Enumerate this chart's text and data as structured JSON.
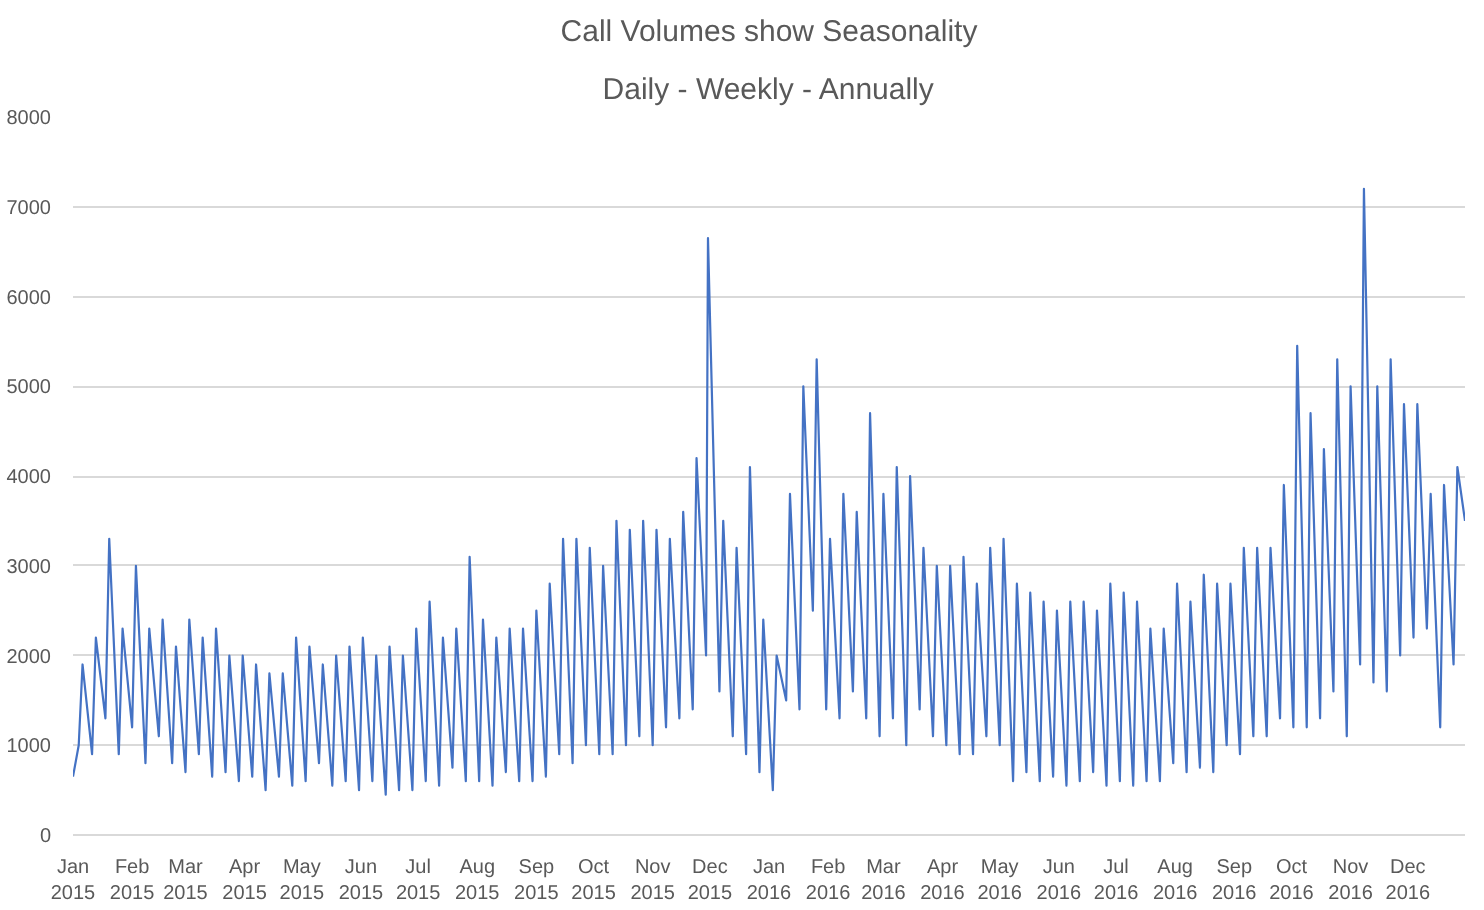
{
  "chart_data": {
    "type": "line",
    "title": "Call Volumes show Seasonality",
    "subtitle": "Daily - Weekly - Annually",
    "color": "#4472c4",
    "grid": "y",
    "ylim": [
      0,
      8000
    ],
    "yticks": [
      0,
      1000,
      2000,
      3000,
      4000,
      5000,
      6000,
      7000,
      8000
    ],
    "xlim": [
      "2015-01-01",
      "2016-12-31"
    ],
    "xticks": [
      {
        "value": "2015-01-01",
        "label": "Jan\n2015"
      },
      {
        "value": "2015-02-01",
        "label": "Feb\n2015"
      },
      {
        "value": "2015-03-01",
        "label": "Mar\n2015"
      },
      {
        "value": "2015-04-01",
        "label": "Apr\n2015"
      },
      {
        "value": "2015-05-01",
        "label": "May\n2015"
      },
      {
        "value": "2015-06-01",
        "label": "Jun\n2015"
      },
      {
        "value": "2015-07-01",
        "label": "Jul\n2015"
      },
      {
        "value": "2015-08-01",
        "label": "Aug\n2015"
      },
      {
        "value": "2015-09-01",
        "label": "Sep\n2015"
      },
      {
        "value": "2015-10-01",
        "label": "Oct\n2015"
      },
      {
        "value": "2015-11-01",
        "label": "Nov\n2015"
      },
      {
        "value": "2015-12-01",
        "label": "Dec\n2015"
      },
      {
        "value": "2016-01-01",
        "label": "Jan\n2016"
      },
      {
        "value": "2016-02-01",
        "label": "Feb\n2016"
      },
      {
        "value": "2016-03-01",
        "label": "Mar\n2016"
      },
      {
        "value": "2016-04-01",
        "label": "Apr\n2016"
      },
      {
        "value": "2016-05-01",
        "label": "May\n2016"
      },
      {
        "value": "2016-06-01",
        "label": "Jun\n2016"
      },
      {
        "value": "2016-07-01",
        "label": "Jul\n2016"
      },
      {
        "value": "2016-08-01",
        "label": "Aug\n2016"
      },
      {
        "value": "2016-09-01",
        "label": "Sep\n2016"
      },
      {
        "value": "2016-10-01",
        "label": "Oct\n2016"
      },
      {
        "value": "2016-11-01",
        "label": "Nov\n2016"
      },
      {
        "value": "2016-12-01",
        "label": "Dec\n2016"
      }
    ],
    "x": [
      "2015-01-01",
      "2015-01-04",
      "2015-01-06",
      "2015-01-11",
      "2015-01-13",
      "2015-01-18",
      "2015-01-20",
      "2015-01-25",
      "2015-01-27",
      "2015-02-01",
      "2015-02-03",
      "2015-02-08",
      "2015-02-10",
      "2015-02-15",
      "2015-02-17",
      "2015-02-22",
      "2015-02-24",
      "2015-03-01",
      "2015-03-03",
      "2015-03-08",
      "2015-03-10",
      "2015-03-15",
      "2015-03-17",
      "2015-03-22",
      "2015-03-24",
      "2015-03-29",
      "2015-03-31",
      "2015-04-05",
      "2015-04-07",
      "2015-04-12",
      "2015-04-14",
      "2015-04-19",
      "2015-04-21",
      "2015-04-26",
      "2015-04-28",
      "2015-05-03",
      "2015-05-05",
      "2015-05-10",
      "2015-05-12",
      "2015-05-17",
      "2015-05-19",
      "2015-05-24",
      "2015-05-26",
      "2015-05-31",
      "2015-06-02",
      "2015-06-07",
      "2015-06-09",
      "2015-06-14",
      "2015-06-16",
      "2015-06-21",
      "2015-06-23",
      "2015-06-28",
      "2015-06-30",
      "2015-07-05",
      "2015-07-07",
      "2015-07-12",
      "2015-07-14",
      "2015-07-19",
      "2015-07-21",
      "2015-07-26",
      "2015-07-28",
      "2015-08-02",
      "2015-08-04",
      "2015-08-09",
      "2015-08-11",
      "2015-08-16",
      "2015-08-18",
      "2015-08-23",
      "2015-08-25",
      "2015-08-30",
      "2015-09-01",
      "2015-09-06",
      "2015-09-08",
      "2015-09-13",
      "2015-09-15",
      "2015-09-20",
      "2015-09-22",
      "2015-09-27",
      "2015-09-29",
      "2015-10-04",
      "2015-10-06",
      "2015-10-11",
      "2015-10-13",
      "2015-10-18",
      "2015-10-20",
      "2015-10-25",
      "2015-10-27",
      "2015-11-01",
      "2015-11-03",
      "2015-11-08",
      "2015-11-10",
      "2015-11-15",
      "2015-11-17",
      "2015-11-22",
      "2015-11-24",
      "2015-11-29",
      "2015-11-30",
      "2015-12-06",
      "2015-12-08",
      "2015-12-13",
      "2015-12-15",
      "2015-12-20",
      "2015-12-22",
      "2015-12-27",
      "2015-12-29",
      "2016-01-03",
      "2016-01-05",
      "2016-01-10",
      "2016-01-12",
      "2016-01-17",
      "2016-01-19",
      "2016-01-24",
      "2016-01-26",
      "2016-01-31",
      "2016-02-02",
      "2016-02-07",
      "2016-02-09",
      "2016-02-14",
      "2016-02-16",
      "2016-02-21",
      "2016-02-23",
      "2016-02-28",
      "2016-03-01",
      "2016-03-06",
      "2016-03-08",
      "2016-03-13",
      "2016-03-15",
      "2016-03-20",
      "2016-03-22",
      "2016-03-27",
      "2016-03-29",
      "2016-04-03",
      "2016-04-05",
      "2016-04-10",
      "2016-04-12",
      "2016-04-17",
      "2016-04-19",
      "2016-04-24",
      "2016-04-26",
      "2016-05-01",
      "2016-05-03",
      "2016-05-08",
      "2016-05-10",
      "2016-05-15",
      "2016-05-17",
      "2016-05-22",
      "2016-05-24",
      "2016-05-29",
      "2016-05-31",
      "2016-06-05",
      "2016-06-07",
      "2016-06-12",
      "2016-06-14",
      "2016-06-19",
      "2016-06-21",
      "2016-06-26",
      "2016-06-28",
      "2016-07-03",
      "2016-07-05",
      "2016-07-10",
      "2016-07-12",
      "2016-07-17",
      "2016-07-19",
      "2016-07-24",
      "2016-07-26",
      "2016-07-31",
      "2016-08-02",
      "2016-08-07",
      "2016-08-09",
      "2016-08-14",
      "2016-08-16",
      "2016-08-21",
      "2016-08-23",
      "2016-08-28",
      "2016-08-30",
      "2016-09-04",
      "2016-09-06",
      "2016-09-11",
      "2016-09-13",
      "2016-09-18",
      "2016-09-20",
      "2016-09-25",
      "2016-09-27",
      "2016-10-02",
      "2016-10-04",
      "2016-10-09",
      "2016-10-11",
      "2016-10-16",
      "2016-10-18",
      "2016-10-23",
      "2016-10-25",
      "2016-10-30",
      "2016-11-01",
      "2016-11-06",
      "2016-11-08",
      "2016-11-13",
      "2016-11-15",
      "2016-11-20",
      "2016-11-22",
      "2016-11-27",
      "2016-11-29",
      "2016-12-04",
      "2016-12-06",
      "2016-12-11",
      "2016-12-13",
      "2016-12-18",
      "2016-12-20",
      "2016-12-25",
      "2016-12-27",
      "2016-12-31"
    ],
    "values": [
      650,
      1000,
      1900,
      900,
      2200,
      1300,
      3300,
      900,
      2300,
      1200,
      3000,
      800,
      2300,
      1100,
      2400,
      800,
      2100,
      700,
      2400,
      900,
      2200,
      650,
      2300,
      700,
      2000,
      600,
      2000,
      650,
      1900,
      500,
      1800,
      650,
      1800,
      550,
      2200,
      600,
      2100,
      800,
      1900,
      550,
      2000,
      600,
      2100,
      500,
      2200,
      600,
      2000,
      450,
      2100,
      500,
      2000,
      500,
      2300,
      600,
      2600,
      550,
      2200,
      750,
      2300,
      600,
      3100,
      600,
      2400,
      550,
      2200,
      700,
      2300,
      600,
      2300,
      600,
      2500,
      650,
      2800,
      900,
      3300,
      800,
      3300,
      1000,
      3200,
      900,
      3000,
      900,
      3500,
      1000,
      3400,
      1100,
      3500,
      1000,
      3400,
      1200,
      3300,
      1300,
      3600,
      1400,
      4200,
      2000,
      6650,
      1600,
      3500,
      1100,
      3200,
      900,
      4100,
      700,
      2400,
      500,
      2000,
      1500,
      3800,
      1400,
      5000,
      2500,
      5300,
      1400,
      3300,
      1300,
      3800,
      1600,
      3600,
      1300,
      4700,
      1100,
      3800,
      1300,
      4100,
      1000,
      4000,
      1400,
      3200,
      1100,
      3000,
      1000,
      3000,
      900,
      3100,
      900,
      2800,
      1100,
      3200,
      1000,
      3300,
      600,
      2800,
      700,
      2700,
      600,
      2600,
      650,
      2500,
      550,
      2600,
      600,
      2600,
      700,
      2500,
      550,
      2800,
      600,
      2700,
      550,
      2600,
      600,
      2300,
      600,
      2300,
      800,
      2800,
      700,
      2600,
      750,
      2900,
      700,
      2800,
      1000,
      2800,
      900,
      3200,
      1100,
      3200,
      1100,
      3200,
      1300,
      3900,
      1200,
      5450,
      1200,
      4700,
      1300,
      4300,
      1600,
      5300,
      1100,
      5000,
      1900,
      7200,
      1700,
      5000,
      1600,
      5300,
      2000,
      4800,
      2200,
      4800,
      2300,
      3800,
      1200,
      3900,
      1900,
      4100,
      3500
    ]
  }
}
